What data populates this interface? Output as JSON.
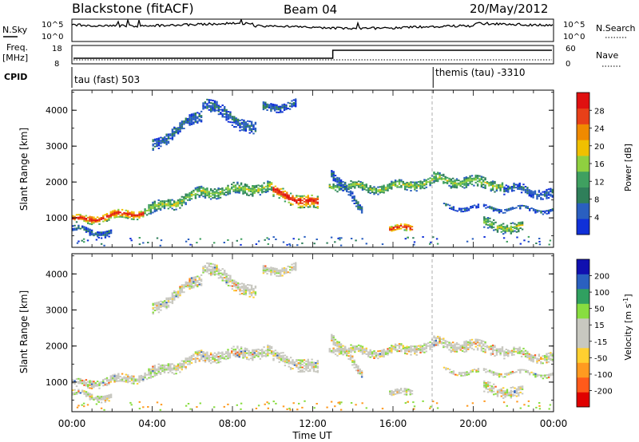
{
  "header": {
    "radar_title": "Blackstone (fitACF)",
    "beam": "Beam 04",
    "date": "20/May/2012"
  },
  "strips": {
    "nsky_label": "N.Sky",
    "nsky_ticks": [
      "10^5",
      "10^0"
    ],
    "nsearch_label": "N.Search",
    "nsearch_ticks": [
      "10^5",
      "10^0"
    ],
    "freq_label": "Freq.",
    "freq_unit": "[MHz]",
    "freq_ticks": [
      "18",
      "8"
    ],
    "nave_label": "Nave",
    "nave_ticks": [
      "60",
      "0"
    ],
    "cpid_label": "CPID",
    "cpid_segments": [
      {
        "label": "tau (fast) 503",
        "start_hour": 0
      },
      {
        "label": "themis (tau) -3310",
        "start_hour": 18
      }
    ],
    "freq_step_hour": 13
  },
  "colors": {
    "power_scale": [
      "#1030d8",
      "#2a5fc0",
      "#2f7f5a",
      "#3fa060",
      "#8fd040",
      "#f0c000",
      "#f08a00",
      "#e84018",
      "#e01010"
    ],
    "velocity_scale": [
      "#e00000",
      "#ff5a1a",
      "#ff9a20",
      "#ffd030",
      "#c8c8c0",
      "#c8c8c0",
      "#88dd40",
      "#30a060",
      "#2a60c0",
      "#1010b0"
    ]
  },
  "chart_data": [
    {
      "type": "heatmap",
      "name": "power",
      "ylabel": "Slant Range [km]",
      "ylim": [
        180,
        4560
      ],
      "xlim_hours": [
        0,
        24
      ],
      "yticks": [
        "4000",
        "3000",
        "2000",
        "1000"
      ],
      "colorbar_label": "Power [dB]",
      "colorbar_ticks": [
        "28",
        "24",
        "20",
        "16",
        "12",
        "8",
        "4"
      ],
      "bands": [
        {
          "start_hour": 0.0,
          "end_hour": 3.6,
          "range_start": 900,
          "range_end": 1150,
          "width": 240,
          "level": "high"
        },
        {
          "start_hour": 3.6,
          "end_hour": 6.6,
          "range_start": 1150,
          "range_end": 1700,
          "width": 300,
          "level": "mid"
        },
        {
          "start_hour": 6.6,
          "end_hour": 10.0,
          "range_start": 1700,
          "range_end": 1850,
          "width": 300,
          "level": "mid"
        },
        {
          "start_hour": 10.0,
          "end_hour": 12.3,
          "range_start": 1700,
          "range_end": 1350,
          "width": 360,
          "level": "high"
        },
        {
          "start_hour": 12.8,
          "end_hour": 15.5,
          "range_start": 1900,
          "range_end": 1800,
          "width": 220,
          "level": "mid"
        },
        {
          "start_hour": 15.5,
          "end_hour": 18.0,
          "range_start": 1800,
          "range_end": 2000,
          "width": 260,
          "level": "mid"
        },
        {
          "start_hour": 18.0,
          "end_hour": 21.5,
          "range_start": 2050,
          "range_end": 1900,
          "width": 300,
          "level": "mid"
        },
        {
          "start_hour": 21.5,
          "end_hour": 24.0,
          "range_start": 1800,
          "range_end": 1650,
          "width": 250,
          "level": "low"
        },
        {
          "start_hour": 4.0,
          "end_hour": 6.5,
          "range_start": 3000,
          "range_end": 3900,
          "width": 300,
          "level": "low"
        },
        {
          "start_hour": 6.5,
          "end_hour": 9.2,
          "range_start": 4200,
          "range_end": 3400,
          "width": 350,
          "level": "low"
        },
        {
          "start_hour": 9.5,
          "end_hour": 11.2,
          "range_start": 4050,
          "range_end": 4150,
          "width": 220,
          "level": "low"
        },
        {
          "start_hour": 12.9,
          "end_hour": 14.5,
          "range_start": 2300,
          "range_end": 1100,
          "width": 280,
          "level": "low"
        },
        {
          "start_hour": 15.8,
          "end_hour": 17.0,
          "range_start": 700,
          "range_end": 650,
          "width": 200,
          "level": "high"
        },
        {
          "start_hour": 20.5,
          "end_hour": 22.5,
          "range_start": 800,
          "range_end": 700,
          "width": 300,
          "level": "mid"
        },
        {
          "start_hour": 18.5,
          "end_hour": 24.0,
          "range_start": 1300,
          "range_end": 1200,
          "width": 120,
          "level": "low"
        },
        {
          "start_hour": 0.0,
          "end_hour": 2.0,
          "range_start": 650,
          "range_end": 550,
          "width": 200,
          "level": "low"
        }
      ]
    },
    {
      "type": "heatmap",
      "name": "velocity",
      "ylabel": "Slant Range [km]",
      "ylim": [
        180,
        4560
      ],
      "xlim_hours": [
        0,
        24
      ],
      "yticks": [
        "4000",
        "3000",
        "2000",
        "1000"
      ],
      "colorbar_label": "Velocity [m s^-1]",
      "colorbar_ticks": [
        "200",
        "100",
        "50",
        "15",
        "-15",
        "-50",
        "-100",
        "-200"
      ],
      "xlabel": "Time UT",
      "xticks": [
        "00:00",
        "04:00",
        "08:00",
        "12:00",
        "16:00",
        "20:00",
        "00:00"
      ]
    }
  ]
}
